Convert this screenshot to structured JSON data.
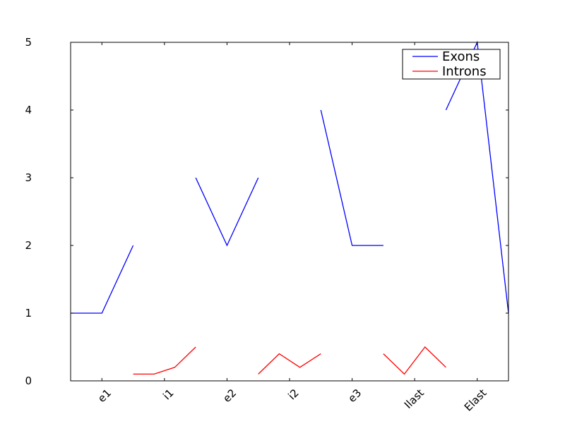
{
  "chart_data": {
    "type": "line",
    "title": "",
    "xlabel": "",
    "ylabel": "",
    "xlim": [
      0,
      14
    ],
    "ylim": [
      0,
      5
    ],
    "yticks": [
      0,
      1,
      2,
      3,
      4,
      5
    ],
    "xticks": [
      {
        "x": 1,
        "label": "e1"
      },
      {
        "x": 3,
        "label": "i1"
      },
      {
        "x": 5,
        "label": "e2"
      },
      {
        "x": 7,
        "label": "i2"
      },
      {
        "x": 9,
        "label": "e3"
      },
      {
        "x": 11,
        "label": "Ilast"
      },
      {
        "x": 13,
        "label": "Elast"
      }
    ],
    "legend_position": "top-right",
    "series": [
      {
        "name": "Exons",
        "color": "#0000ff",
        "segments": [
          [
            [
              0,
              1
            ],
            [
              1,
              1
            ],
            [
              2,
              2
            ]
          ],
          [
            [
              4,
              3
            ],
            [
              5,
              2
            ],
            [
              6,
              3
            ]
          ],
          [
            [
              8,
              4
            ],
            [
              9,
              2
            ],
            [
              10,
              2
            ]
          ],
          [
            [
              12,
              4
            ],
            [
              13,
              5
            ],
            [
              14,
              1
            ]
          ]
        ]
      },
      {
        "name": "Introns",
        "color": "#ff0000",
        "segments": [
          [
            [
              2,
              0.1
            ],
            [
              2.67,
              0.1
            ],
            [
              3.33,
              0.2
            ],
            [
              4,
              0.5
            ]
          ],
          [
            [
              6,
              0.1
            ],
            [
              6.67,
              0.4
            ],
            [
              7.33,
              0.2
            ],
            [
              8,
              0.4
            ]
          ],
          [
            [
              10,
              0.4
            ],
            [
              10.67,
              0.1
            ],
            [
              11.33,
              0.5
            ],
            [
              12,
              0.2
            ]
          ]
        ]
      }
    ]
  }
}
